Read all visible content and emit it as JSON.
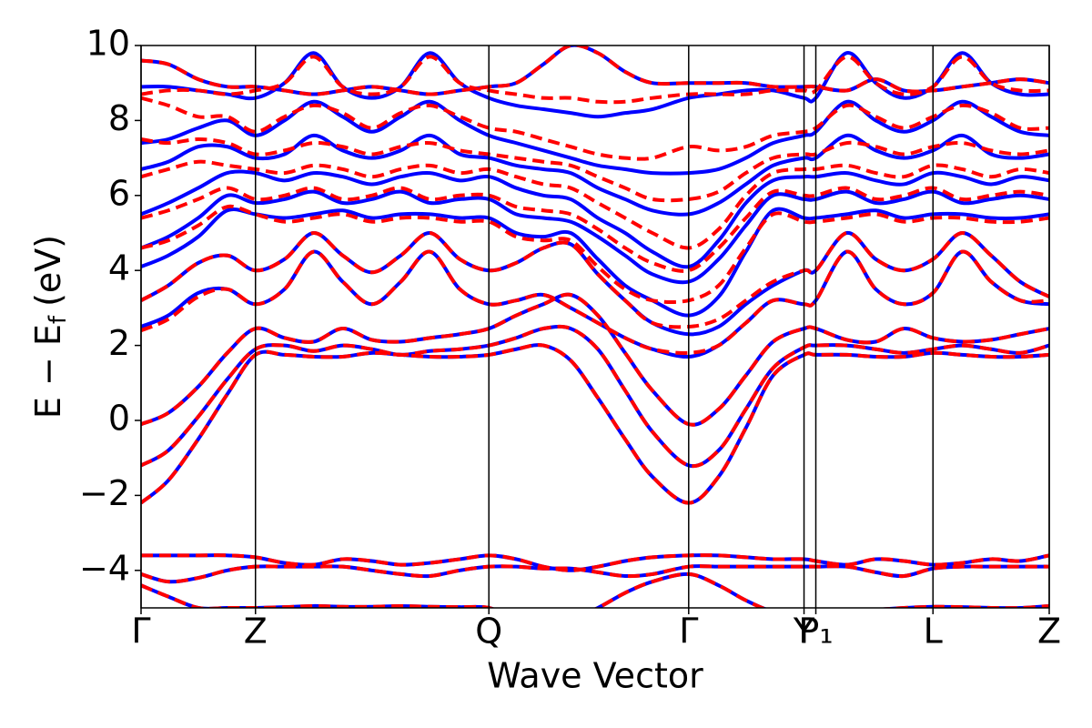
{
  "chart_data": {
    "type": "line",
    "x_label": "Wave Vector",
    "y_label": {
      "main": "E − E",
      "sub": "f",
      "unit": "(eV)"
    },
    "x": [
      0,
      0.03,
      0.063,
      0.095,
      0.126,
      0.158,
      0.19,
      0.222,
      0.254,
      0.286,
      0.318,
      0.351,
      0.383,
      0.413,
      0.443,
      0.473,
      0.503,
      0.533,
      0.563,
      0.603,
      0.636,
      0.666,
      0.696,
      0.73,
      0.743,
      0.777,
      0.809,
      0.84,
      0.872,
      0.904,
      0.936,
      0.968,
      1.0
    ],
    "xlim": [
      0,
      1
    ],
    "xticks": [
      {
        "value": 0,
        "label": "Γ"
      },
      {
        "value": 0.126,
        "label": "Z"
      },
      {
        "value": 0.383,
        "label": "Q"
      },
      {
        "value": 0.603,
        "label": "Γ"
      },
      {
        "value": 0.73,
        "label": "Y"
      },
      {
        "value": 0.743,
        "label": "P₁"
      },
      {
        "value": 0.872,
        "label": "L"
      },
      {
        "value": 1.0,
        "label": "Z"
      }
    ],
    "ylim": [
      -5,
      10
    ],
    "yticks": [
      {
        "value": -4,
        "label": "−4"
      },
      {
        "value": -2,
        "label": "−2"
      },
      0,
      2,
      4,
      6,
      8,
      10
    ],
    "series": [
      {
        "color": "#0000ff",
        "dashed": false,
        "bands": [
          [
            -2.2,
            -1.6,
            -0.5,
            0.7,
            1.75,
            1.75,
            1.7,
            1.7,
            1.8,
            1.75,
            1.7,
            1.7,
            1.75,
            1.9,
            2.0,
            1.6,
            0.6,
            -0.5,
            -1.5,
            -2.2,
            -1.5,
            -0.2,
            1.2,
            1.75,
            1.75,
            1.75,
            1.7,
            1.7,
            1.8,
            1.75,
            1.7,
            1.7,
            1.75
          ],
          [
            -1.2,
            -0.8,
            0.1,
            1.1,
            1.9,
            2.0,
            1.85,
            2.0,
            1.9,
            1.75,
            1.85,
            1.9,
            2.0,
            2.2,
            2.45,
            2.45,
            1.9,
            0.8,
            -0.3,
            -1.2,
            -0.8,
            0.3,
            1.4,
            1.95,
            2.0,
            2.0,
            1.9,
            1.8,
            1.9,
            2.0,
            1.9,
            1.8,
            2.0
          ],
          [
            -0.1,
            0.2,
            0.9,
            1.8,
            2.45,
            2.2,
            2.1,
            2.45,
            2.15,
            2.1,
            2.2,
            2.3,
            2.45,
            2.8,
            3.1,
            3.35,
            2.8,
            1.8,
            0.8,
            -0.1,
            0.3,
            1.2,
            2.1,
            2.45,
            2.45,
            2.15,
            2.1,
            2.45,
            2.2,
            2.1,
            2.15,
            2.3,
            2.45
          ],
          [
            2.5,
            2.8,
            3.4,
            3.5,
            3.1,
            3.5,
            4.5,
            3.7,
            3.1,
            3.7,
            4.5,
            3.5,
            3.1,
            3.2,
            3.35,
            3.0,
            2.6,
            2.2,
            1.9,
            1.7,
            2.0,
            2.6,
            3.2,
            3.1,
            3.2,
            4.5,
            3.5,
            3.1,
            3.4,
            4.5,
            3.7,
            3.2,
            3.1
          ],
          [
            3.2,
            3.6,
            4.2,
            4.4,
            4.0,
            4.3,
            5.0,
            4.4,
            3.95,
            4.4,
            5.0,
            4.3,
            4.0,
            4.2,
            4.6,
            4.7,
            3.9,
            3.2,
            2.6,
            2.3,
            2.5,
            3.1,
            3.6,
            4.0,
            4.0,
            5.0,
            4.3,
            4.0,
            4.3,
            5.0,
            4.4,
            3.7,
            3.3
          ],
          [
            4.1,
            4.4,
            4.9,
            5.6,
            5.5,
            5.4,
            5.5,
            5.6,
            5.4,
            5.5,
            5.5,
            5.4,
            5.4,
            5.0,
            4.9,
            5.0,
            4.3,
            3.6,
            3.2,
            2.8,
            3.3,
            4.5,
            5.6,
            5.4,
            5.4,
            5.5,
            5.6,
            5.4,
            5.5,
            5.5,
            5.4,
            5.4,
            5.5
          ],
          [
            4.6,
            4.9,
            5.4,
            6.0,
            5.8,
            5.9,
            6.1,
            5.8,
            5.9,
            6.1,
            5.8,
            5.9,
            5.9,
            5.5,
            5.4,
            5.3,
            4.9,
            4.4,
            3.9,
            3.7,
            4.3,
            5.2,
            6.0,
            5.9,
            5.9,
            6.1,
            5.8,
            5.9,
            6.1,
            5.8,
            5.9,
            6.0,
            5.9
          ],
          [
            5.5,
            5.8,
            6.2,
            6.6,
            6.6,
            6.4,
            6.6,
            6.5,
            6.3,
            6.5,
            6.6,
            6.4,
            6.5,
            6.2,
            6.0,
            5.9,
            5.4,
            5.0,
            4.5,
            4.1,
            4.8,
            5.8,
            6.4,
            6.5,
            6.5,
            6.6,
            6.4,
            6.3,
            6.6,
            6.5,
            6.3,
            6.5,
            6.4
          ],
          [
            6.7,
            6.9,
            7.3,
            7.3,
            7.0,
            7.1,
            7.6,
            7.2,
            7.0,
            7.2,
            7.6,
            7.1,
            7.0,
            6.8,
            6.7,
            6.6,
            6.2,
            5.9,
            5.6,
            5.5,
            5.8,
            6.3,
            6.8,
            7.0,
            7.0,
            7.6,
            7.2,
            7.0,
            7.2,
            7.6,
            7.1,
            7.0,
            7.1
          ],
          [
            7.4,
            7.5,
            7.8,
            8.0,
            7.6,
            8.0,
            8.5,
            8.1,
            7.7,
            8.1,
            8.5,
            8.0,
            7.6,
            7.4,
            7.2,
            7.0,
            6.8,
            6.7,
            6.6,
            6.6,
            6.7,
            7.0,
            7.4,
            7.6,
            7.7,
            8.5,
            8.0,
            7.7,
            8.0,
            8.5,
            8.1,
            7.7,
            7.6
          ],
          [
            8.9,
            8.9,
            8.8,
            8.7,
            8.6,
            9.0,
            9.8,
            8.9,
            8.6,
            8.9,
            9.8,
            9.0,
            8.6,
            8.4,
            8.3,
            8.2,
            8.1,
            8.2,
            8.3,
            8.6,
            8.7,
            8.8,
            8.8,
            8.6,
            8.6,
            9.8,
            9.0,
            8.6,
            8.9,
            9.8,
            9.0,
            8.7,
            8.7
          ],
          [
            9.6,
            9.5,
            9.1,
            8.9,
            8.9,
            8.8,
            8.7,
            8.8,
            8.9,
            8.8,
            8.7,
            8.8,
            8.9,
            9.0,
            9.5,
            10.0,
            9.8,
            9.3,
            9.0,
            9.0,
            9.0,
            9.0,
            8.9,
            8.9,
            8.9,
            8.8,
            9.1,
            8.8,
            8.8,
            8.9,
            9.0,
            9.1,
            9.0
          ],
          [
            -3.6,
            -3.6,
            -3.6,
            -3.6,
            -3.65,
            -3.8,
            -3.85,
            -3.7,
            -3.75,
            -3.85,
            -3.8,
            -3.7,
            -3.6,
            -3.7,
            -3.9,
            -4.0,
            -3.9,
            -3.75,
            -3.65,
            -3.6,
            -3.6,
            -3.65,
            -3.7,
            -3.7,
            -3.75,
            -3.85,
            -3.7,
            -3.75,
            -3.85,
            -3.8,
            -3.7,
            -3.75,
            -3.6
          ],
          [
            -4.1,
            -4.3,
            -4.2,
            -4.0,
            -3.9,
            -3.9,
            -3.9,
            -3.9,
            -4.0,
            -4.1,
            -4.15,
            -4.0,
            -3.9,
            -3.9,
            -3.95,
            -3.95,
            -4.05,
            -4.15,
            -4.1,
            -3.9,
            -3.9,
            -3.9,
            -3.9,
            -3.9,
            -3.9,
            -3.9,
            -4.05,
            -4.15,
            -3.95,
            -3.9,
            -3.9,
            -3.9,
            -3.9
          ],
          [
            -4.4,
            -4.7,
            -5.0,
            -5.0,
            -5.0,
            -4.98,
            -4.95,
            -4.97,
            -4.97,
            -4.95,
            -4.97,
            -4.98,
            -5.0,
            -5.3,
            -5.5,
            -5.3,
            -5.0,
            -4.6,
            -4.3,
            -4.1,
            -4.4,
            -4.8,
            -5.1,
            -5.2,
            -5.2,
            -5.1,
            -5.05,
            -5.0,
            -4.97,
            -4.98,
            -5.0,
            -5.0,
            -4.95
          ]
        ]
      },
      {
        "color": "#ff0000",
        "dashed": true,
        "bands": [
          [
            -2.2,
            -1.6,
            -0.5,
            0.7,
            1.75,
            1.75,
            1.7,
            1.7,
            1.8,
            1.75,
            1.7,
            1.7,
            1.75,
            1.9,
            2.0,
            1.6,
            0.6,
            -0.5,
            -1.5,
            -2.2,
            -1.5,
            -0.2,
            1.2,
            1.75,
            1.75,
            1.75,
            1.7,
            1.7,
            1.8,
            1.75,
            1.7,
            1.7,
            1.75
          ],
          [
            -1.2,
            -0.8,
            0.1,
            1.1,
            1.9,
            2.0,
            1.85,
            2.0,
            1.9,
            1.75,
            1.85,
            1.9,
            2.0,
            2.2,
            2.45,
            2.45,
            1.9,
            0.8,
            -0.3,
            -1.2,
            -0.8,
            0.3,
            1.4,
            1.95,
            2.0,
            2.0,
            1.9,
            1.8,
            1.9,
            2.0,
            1.9,
            1.8,
            2.0
          ],
          [
            -0.1,
            0.2,
            0.9,
            1.8,
            2.45,
            2.2,
            2.1,
            2.45,
            2.15,
            2.1,
            2.2,
            2.3,
            2.45,
            2.8,
            3.1,
            3.35,
            2.8,
            1.8,
            0.8,
            -0.1,
            0.3,
            1.2,
            2.1,
            2.45,
            2.45,
            2.15,
            2.1,
            2.45,
            2.2,
            2.1,
            2.15,
            2.3,
            2.45
          ],
          [
            2.4,
            2.7,
            3.3,
            3.5,
            3.1,
            3.5,
            4.5,
            3.7,
            3.1,
            3.7,
            4.5,
            3.5,
            3.1,
            3.2,
            3.35,
            3.0,
            2.6,
            2.2,
            1.9,
            1.8,
            2.0,
            2.6,
            3.2,
            3.1,
            3.2,
            4.5,
            3.5,
            3.1,
            3.4,
            4.5,
            3.7,
            3.2,
            3.2
          ],
          [
            3.2,
            3.6,
            4.2,
            4.4,
            4.0,
            4.3,
            5.0,
            4.4,
            3.95,
            4.4,
            5.0,
            4.3,
            4.0,
            4.2,
            4.6,
            4.7,
            3.9,
            3.2,
            2.6,
            2.5,
            2.7,
            3.2,
            3.7,
            4.0,
            4.0,
            5.0,
            4.3,
            4.0,
            4.3,
            5.0,
            4.4,
            3.7,
            3.3
          ],
          [
            4.6,
            4.8,
            5.2,
            5.7,
            5.5,
            5.3,
            5.4,
            5.5,
            5.3,
            5.4,
            5.4,
            5.3,
            5.3,
            4.9,
            4.8,
            4.8,
            4.1,
            3.5,
            3.2,
            3.2,
            3.6,
            4.6,
            5.5,
            5.3,
            5.3,
            5.4,
            5.5,
            5.3,
            5.4,
            5.4,
            5.3,
            5.3,
            5.4
          ],
          [
            5.4,
            5.6,
            5.9,
            6.2,
            5.9,
            6.0,
            6.2,
            5.9,
            6.0,
            6.2,
            5.9,
            6.0,
            6.0,
            5.7,
            5.6,
            5.5,
            5.1,
            4.6,
            4.2,
            4.0,
            4.6,
            5.4,
            6.1,
            6.0,
            6.0,
            6.2,
            5.9,
            6.0,
            6.2,
            5.9,
            6.0,
            6.1,
            6.0
          ],
          [
            6.5,
            6.7,
            6.9,
            6.8,
            6.7,
            6.6,
            6.8,
            6.7,
            6.5,
            6.7,
            6.8,
            6.6,
            6.7,
            6.5,
            6.3,
            6.2,
            5.8,
            5.4,
            5.0,
            4.6,
            5.1,
            6.0,
            6.6,
            6.7,
            6.7,
            6.8,
            6.6,
            6.5,
            6.8,
            6.7,
            6.5,
            6.7,
            6.6
          ],
          [
            7.5,
            7.4,
            7.5,
            7.4,
            7.1,
            7.2,
            7.4,
            7.3,
            7.1,
            7.3,
            7.4,
            7.2,
            7.1,
            7.0,
            6.9,
            6.8,
            6.5,
            6.2,
            5.9,
            5.9,
            6.1,
            6.6,
            7.0,
            7.1,
            7.1,
            7.4,
            7.3,
            7.1,
            7.3,
            7.4,
            7.2,
            7.1,
            7.2
          ],
          [
            8.6,
            8.4,
            8.1,
            8.1,
            7.7,
            8.1,
            8.4,
            8.2,
            7.8,
            8.2,
            8.4,
            8.1,
            7.8,
            7.7,
            7.5,
            7.3,
            7.1,
            7.0,
            7.0,
            7.3,
            7.2,
            7.3,
            7.6,
            7.7,
            7.8,
            8.4,
            8.1,
            7.8,
            8.1,
            8.4,
            8.2,
            7.8,
            7.8
          ],
          [
            8.7,
            8.8,
            8.8,
            8.7,
            8.8,
            9.0,
            9.7,
            8.9,
            8.7,
            8.9,
            9.7,
            9.0,
            8.8,
            8.7,
            8.6,
            8.6,
            8.5,
            8.5,
            8.6,
            8.7,
            8.7,
            8.7,
            8.8,
            8.8,
            8.8,
            9.7,
            9.0,
            8.7,
            8.9,
            9.7,
            9.0,
            8.8,
            8.8
          ],
          [
            9.6,
            9.5,
            9.1,
            8.9,
            8.9,
            8.8,
            8.7,
            8.8,
            8.9,
            8.8,
            8.7,
            8.8,
            8.9,
            9.0,
            9.5,
            10.0,
            9.8,
            9.3,
            9.0,
            9.0,
            9.0,
            9.0,
            8.9,
            8.9,
            8.9,
            8.8,
            9.1,
            8.8,
            8.8,
            8.9,
            9.0,
            9.1,
            9.0
          ],
          [
            -3.6,
            -3.6,
            -3.6,
            -3.6,
            -3.65,
            -3.8,
            -3.85,
            -3.7,
            -3.75,
            -3.85,
            -3.8,
            -3.7,
            -3.6,
            -3.7,
            -3.9,
            -4.0,
            -3.9,
            -3.75,
            -3.65,
            -3.6,
            -3.6,
            -3.65,
            -3.7,
            -3.7,
            -3.75,
            -3.85,
            -3.7,
            -3.75,
            -3.85,
            -3.8,
            -3.7,
            -3.75,
            -3.6
          ],
          [
            -4.1,
            -4.3,
            -4.2,
            -4.0,
            -3.9,
            -3.9,
            -3.9,
            -3.9,
            -4.0,
            -4.1,
            -4.15,
            -4.0,
            -3.9,
            -3.9,
            -3.95,
            -3.95,
            -4.05,
            -4.15,
            -4.1,
            -3.9,
            -3.9,
            -3.9,
            -3.9,
            -3.9,
            -3.9,
            -3.9,
            -4.05,
            -4.15,
            -3.95,
            -3.9,
            -3.9,
            -3.9,
            -3.9
          ],
          [
            -4.4,
            -4.7,
            -5.0,
            -5.0,
            -5.0,
            -4.98,
            -4.95,
            -4.97,
            -4.97,
            -4.95,
            -4.97,
            -4.98,
            -5.0,
            -5.3,
            -5.5,
            -5.3,
            -5.0,
            -4.6,
            -4.3,
            -4.1,
            -4.4,
            -4.8,
            -5.1,
            -5.2,
            -5.2,
            -5.1,
            -5.05,
            -5.0,
            -4.97,
            -4.98,
            -5.0,
            -5.0,
            -4.95
          ]
        ]
      }
    ]
  }
}
